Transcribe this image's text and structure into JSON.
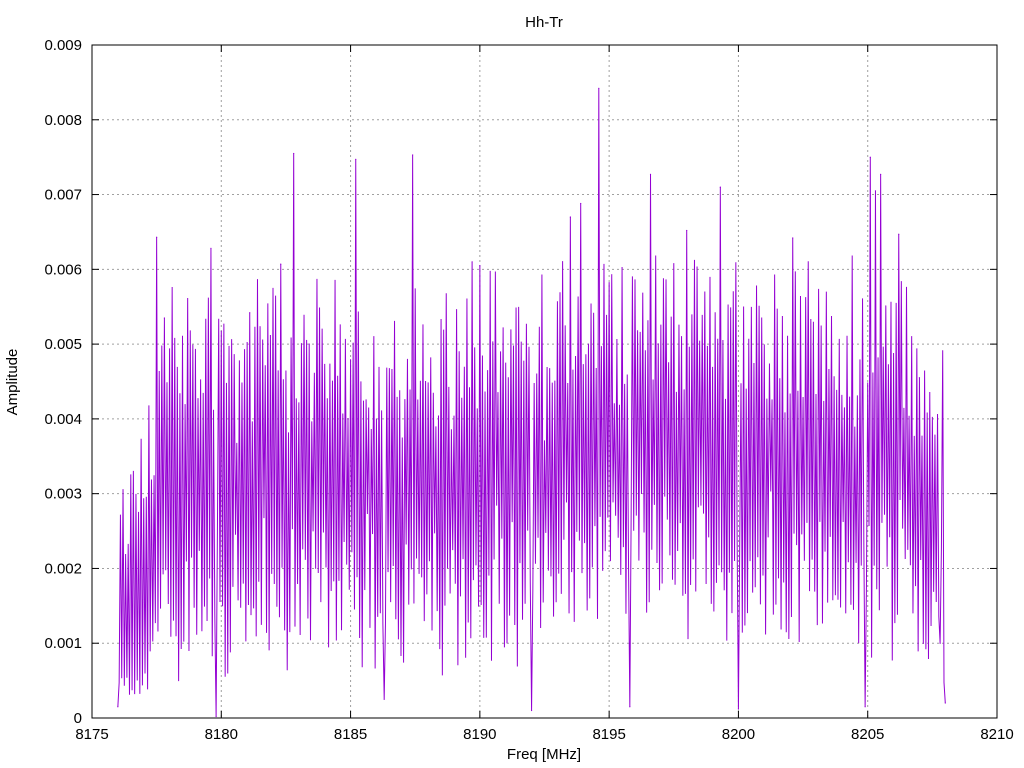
{
  "chart_data": {
    "type": "line",
    "title": "Hh-Tr",
    "xlabel": "Freq [MHz]",
    "ylabel": "Amplitude",
    "xlim": [
      8175,
      8210
    ],
    "ylim": [
      0,
      0.009
    ],
    "x_ticks": [
      "8175",
      "8180",
      "8185",
      "8190",
      "8195",
      "8200",
      "8205",
      "8210"
    ],
    "y_ticks": [
      "0",
      "0.001",
      "0.002",
      "0.003",
      "0.004",
      "0.005",
      "0.006",
      "0.007",
      "0.008",
      "0.009"
    ],
    "grid": true,
    "line_color": "#9400d3",
    "series": [
      {
        "name": "",
        "x_start": 8176.0,
        "x_step": 0.05,
        "peaks": [
          {
            "x": 8176.0,
            "y": 0.00015
          },
          {
            "x": 8177.5,
            "y": 0.00643
          },
          {
            "x": 8177.8,
            "y": 0.00535
          },
          {
            "x": 8179.6,
            "y": 0.00628
          },
          {
            "x": 8179.8,
            "y": 2e-05
          },
          {
            "x": 8181.1,
            "y": 0.00542
          },
          {
            "x": 8182.3,
            "y": 0.00607
          },
          {
            "x": 8182.8,
            "y": 0.00755
          },
          {
            "x": 8185.2,
            "y": 0.00747
          },
          {
            "x": 8186.3,
            "y": 0.00025
          },
          {
            "x": 8187.4,
            "y": 0.00753
          },
          {
            "x": 8189.7,
            "y": 0.0061
          },
          {
            "x": 8190.0,
            "y": 0.00605
          },
          {
            "x": 8192.0,
            "y": 0.0001
          },
          {
            "x": 8193.5,
            "y": 0.0067
          },
          {
            "x": 8193.9,
            "y": 0.00688
          },
          {
            "x": 8194.6,
            "y": 0.00842
          },
          {
            "x": 8195.8,
            "y": 0.00015
          },
          {
            "x": 8196.6,
            "y": 0.00727
          },
          {
            "x": 8198.0,
            "y": 0.00652
          },
          {
            "x": 8199.3,
            "y": 0.0071
          },
          {
            "x": 8200.0,
            "y": 0.00012
          },
          {
            "x": 8202.1,
            "y": 0.00642
          },
          {
            "x": 8204.9,
            "y": 0.00015
          },
          {
            "x": 8205.1,
            "y": 0.0075
          },
          {
            "x": 8205.3,
            "y": 0.00705
          },
          {
            "x": 8205.5,
            "y": 0.00727
          },
          {
            "x": 8206.2,
            "y": 0.00647
          },
          {
            "x": 8207.0,
            "y": 0.00455
          },
          {
            "x": 8207.8,
            "y": 0.001
          },
          {
            "x": 8208.0,
            "y": 0.0002
          }
        ],
        "x_end": 8208.0
      }
    ]
  }
}
